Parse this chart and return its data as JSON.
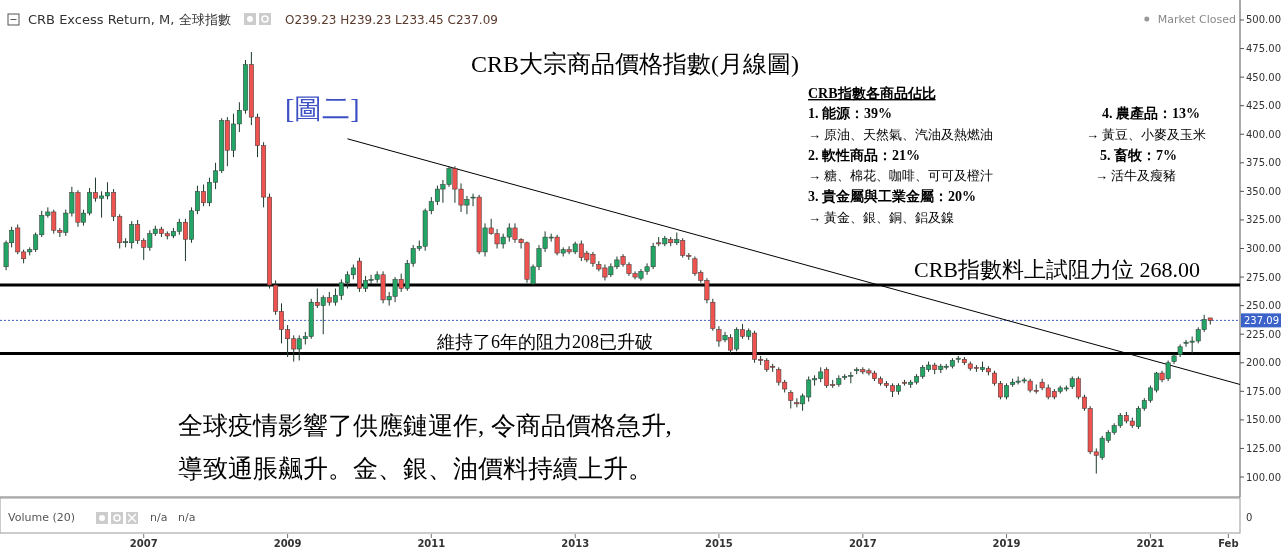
{
  "chart_data": {
    "type": "candlestick",
    "title": "CRB大宗商品價格指數(月線圖)",
    "subtitle": "CRB Excess Return, M, 全球指數",
    "x": [
      "2005-02",
      "2005-03",
      "2005-04",
      "2005-05",
      "2005-06",
      "2005-07",
      "2005-08",
      "2005-09",
      "2005-10",
      "2005-11",
      "2005-12",
      "2006-01",
      "2006-02",
      "2006-03",
      "2006-04",
      "2006-05",
      "2006-06",
      "2006-07",
      "2006-08",
      "2006-09",
      "2006-10",
      "2006-11",
      "2006-12",
      "2007-01",
      "2007-02",
      "2007-03",
      "2007-04",
      "2007-05",
      "2007-06",
      "2007-07",
      "2007-08",
      "2007-09",
      "2007-10",
      "2007-11",
      "2007-12",
      "2008-01",
      "2008-02",
      "2008-03",
      "2008-04",
      "2008-05",
      "2008-06",
      "2008-07",
      "2008-08",
      "2008-09",
      "2008-10",
      "2008-11",
      "2008-12",
      "2009-01",
      "2009-02",
      "2009-03",
      "2009-04",
      "2009-05",
      "2009-06",
      "2009-07",
      "2009-08",
      "2009-09",
      "2009-10",
      "2009-11",
      "2009-12",
      "2010-01",
      "2010-02",
      "2010-03",
      "2010-04",
      "2010-05",
      "2010-06",
      "2010-07",
      "2010-08",
      "2010-09",
      "2010-10",
      "2010-11",
      "2010-12",
      "2011-01",
      "2011-02",
      "2011-03",
      "2011-04",
      "2011-05",
      "2011-06",
      "2011-07",
      "2011-08",
      "2011-09",
      "2011-10",
      "2011-11",
      "2011-12",
      "2012-01",
      "2012-02",
      "2012-03",
      "2012-04",
      "2012-05",
      "2012-06",
      "2012-07",
      "2012-08",
      "2012-09",
      "2012-10",
      "2012-11",
      "2012-12",
      "2013-01",
      "2013-02",
      "2013-03",
      "2013-04",
      "2013-05",
      "2013-06",
      "2013-07",
      "2013-08",
      "2013-09",
      "2013-10",
      "2013-11",
      "2013-12",
      "2014-01",
      "2014-02",
      "2014-03",
      "2014-04",
      "2014-05",
      "2014-06",
      "2014-07",
      "2014-08",
      "2014-09",
      "2014-10",
      "2014-11",
      "2014-12",
      "2015-01",
      "2015-02",
      "2015-03",
      "2015-04",
      "2015-05",
      "2015-06",
      "2015-07",
      "2015-08",
      "2015-09",
      "2015-10",
      "2015-11",
      "2015-12",
      "2016-01",
      "2016-02",
      "2016-03",
      "2016-04",
      "2016-05",
      "2016-06",
      "2016-07",
      "2016-08",
      "2016-09",
      "2016-10",
      "2016-11",
      "2016-12",
      "2017-01",
      "2017-02",
      "2017-03",
      "2017-04",
      "2017-05",
      "2017-06",
      "2017-07",
      "2017-08",
      "2017-09",
      "2017-10",
      "2017-11",
      "2017-12",
      "2018-01",
      "2018-02",
      "2018-03",
      "2018-04",
      "2018-05",
      "2018-06",
      "2018-07",
      "2018-08",
      "2018-09",
      "2018-10",
      "2018-11",
      "2018-12",
      "2019-01",
      "2019-02",
      "2019-03",
      "2019-04",
      "2019-05",
      "2019-06",
      "2019-07",
      "2019-08",
      "2019-09",
      "2019-10",
      "2019-11",
      "2019-12",
      "2020-01",
      "2020-02",
      "2020-03",
      "2020-04",
      "2020-05",
      "2020-06",
      "2020-07",
      "2020-08",
      "2020-09",
      "2020-10",
      "2020-11",
      "2020-12",
      "2021-01",
      "2021-02",
      "2021-03",
      "2021-04",
      "2021-05",
      "2021-06",
      "2021-07",
      "2021-08",
      "2021-09",
      "2021-10",
      "2021-11"
    ],
    "ohlc": [
      [
        284,
        307,
        281,
        305
      ],
      [
        305,
        319,
        301,
        316
      ],
      [
        318,
        321,
        295,
        297
      ],
      [
        297,
        299,
        287,
        291
      ],
      [
        297,
        301,
        294,
        299
      ],
      [
        299,
        314,
        297,
        312
      ],
      [
        312,
        333,
        310,
        329
      ],
      [
        329,
        336,
        327,
        332
      ],
      [
        332,
        334,
        313,
        316
      ],
      [
        316,
        318,
        310,
        314
      ],
      [
        314,
        334,
        311,
        331
      ],
      [
        331,
        354,
        328,
        349
      ],
      [
        349,
        351,
        319,
        323
      ],
      [
        323,
        334,
        320,
        331
      ],
      [
        331,
        353,
        329,
        349
      ],
      [
        349,
        362,
        341,
        344
      ],
      [
        344,
        350,
        327,
        346
      ],
      [
        346,
        358,
        343,
        349
      ],
      [
        349,
        352,
        324,
        328
      ],
      [
        328,
        330,
        300,
        305
      ],
      [
        305,
        309,
        301,
        306
      ],
      [
        305,
        324,
        300,
        321
      ],
      [
        321,
        325,
        304,
        307
      ],
      [
        307,
        309,
        290,
        301
      ],
      [
        301,
        316,
        298,
        313
      ],
      [
        313,
        320,
        311,
        317
      ],
      [
        317,
        319,
        310,
        313
      ],
      [
        313,
        315,
        308,
        311
      ],
      [
        311,
        318,
        309,
        315
      ],
      [
        315,
        326,
        312,
        323
      ],
      [
        323,
        326,
        289,
        308
      ],
      [
        308,
        336,
        305,
        333
      ],
      [
        333,
        355,
        330,
        350
      ],
      [
        350,
        356,
        337,
        340
      ],
      [
        340,
        362,
        337,
        358
      ],
      [
        358,
        375,
        352,
        368
      ],
      [
        368,
        414,
        366,
        412
      ],
      [
        412,
        415,
        372,
        386
      ],
      [
        386,
        418,
        380,
        409
      ],
      [
        409,
        428,
        402,
        421
      ],
      [
        421,
        465,
        418,
        461
      ],
      [
        461,
        472,
        408,
        415
      ],
      [
        415,
        418,
        380,
        390
      ],
      [
        390,
        393,
        336,
        345
      ],
      [
        345,
        348,
        265,
        268
      ],
      [
        268,
        272,
        242,
        245
      ],
      [
        245,
        252,
        217,
        229
      ],
      [
        229,
        233,
        205,
        221
      ],
      [
        221,
        224,
        201,
        212
      ],
      [
        212,
        224,
        202,
        221
      ],
      [
        221,
        227,
        216,
        223
      ],
      [
        223,
        256,
        221,
        253
      ],
      [
        253,
        265,
        248,
        250
      ],
      [
        250,
        259,
        225,
        257
      ],
      [
        257,
        262,
        250,
        253
      ],
      [
        253,
        265,
        250,
        259
      ],
      [
        259,
        273,
        255,
        270
      ],
      [
        270,
        280,
        265,
        277
      ],
      [
        277,
        286,
        273,
        283
      ],
      [
        289,
        292,
        262,
        265
      ],
      [
        265,
        276,
        262,
        272
      ],
      [
        272,
        277,
        269,
        273
      ],
      [
        273,
        280,
        270,
        277
      ],
      [
        277,
        280,
        252,
        255
      ],
      [
        255,
        262,
        250,
        258
      ],
      [
        258,
        275,
        253,
        273
      ],
      [
        273,
        278,
        262,
        265
      ],
      [
        265,
        290,
        263,
        287
      ],
      [
        287,
        303,
        284,
        300
      ],
      [
        300,
        307,
        298,
        302
      ],
      [
        302,
        335,
        298,
        333
      ],
      [
        333,
        345,
        330,
        341
      ],
      [
        341,
        355,
        338,
        352
      ],
      [
        352,
        360,
        340,
        356
      ],
      [
        356,
        372,
        354,
        370
      ],
      [
        370,
        372,
        340,
        352
      ],
      [
        352,
        357,
        332,
        338
      ],
      [
        338,
        346,
        330,
        343
      ],
      [
        345,
        348,
        337,
        345
      ],
      [
        345,
        347,
        295,
        297
      ],
      [
        297,
        322,
        293,
        318
      ],
      [
        318,
        326,
        312,
        313
      ],
      [
        313,
        317,
        300,
        304
      ],
      [
        304,
        313,
        300,
        310
      ],
      [
        310,
        322,
        306,
        318
      ],
      [
        318,
        322,
        305,
        308
      ],
      [
        308,
        309,
        300,
        305
      ],
      [
        305,
        306,
        270,
        273
      ],
      [
        269,
        286,
        268,
        284
      ],
      [
        284,
        303,
        281,
        300
      ],
      [
        300,
        315,
        297,
        310
      ],
      [
        310,
        313,
        306,
        310
      ],
      [
        310,
        312,
        294,
        296
      ],
      [
        296,
        301,
        293,
        299
      ],
      [
        299,
        302,
        295,
        297
      ],
      [
        297,
        306,
        295,
        304
      ],
      [
        304,
        307,
        289,
        292
      ],
      [
        296,
        298,
        288,
        290
      ],
      [
        295,
        297,
        284,
        287
      ],
      [
        286,
        289,
        280,
        282
      ],
      [
        283,
        286,
        272,
        275
      ],
      [
        277,
        287,
        275,
        284
      ],
      [
        284,
        293,
        282,
        290
      ],
      [
        293,
        295,
        284,
        286
      ],
      [
        286,
        288,
        276,
        278
      ],
      [
        278,
        280,
        273,
        275
      ],
      [
        274,
        282,
        272,
        280
      ],
      [
        280,
        287,
        277,
        284
      ],
      [
        284,
        305,
        282,
        302
      ],
      [
        305,
        310,
        302,
        304
      ],
      [
        304,
        311,
        302,
        309
      ],
      [
        308,
        310,
        302,
        305
      ],
      [
        305,
        314,
        303,
        308
      ],
      [
        307,
        309,
        292,
        294
      ],
      [
        294,
        296,
        290,
        293
      ],
      [
        291,
        293,
        276,
        278
      ],
      [
        279,
        281,
        270,
        272
      ],
      [
        272,
        274,
        252,
        255
      ],
      [
        253,
        256,
        228,
        230
      ],
      [
        229,
        232,
        214,
        219
      ],
      [
        220,
        227,
        218,
        224
      ],
      [
        222,
        225,
        208,
        211
      ],
      [
        212,
        231,
        210,
        229
      ],
      [
        229,
        234,
        221,
        223
      ],
      [
        223,
        230,
        220,
        228
      ],
      [
        226,
        228,
        200,
        203
      ],
      [
        203,
        206,
        198,
        202
      ],
      [
        202,
        204,
        192,
        194
      ],
      [
        197,
        199,
        192,
        196
      ],
      [
        194,
        196,
        180,
        183
      ],
      [
        183,
        185,
        174,
        177
      ],
      [
        174,
        176,
        160,
        167
      ],
      [
        165,
        169,
        161,
        164
      ],
      [
        164,
        173,
        158,
        171
      ],
      [
        170,
        188,
        166,
        185
      ],
      [
        185,
        189,
        180,
        186
      ],
      [
        186,
        196,
        183,
        192
      ],
      [
        194,
        196,
        178,
        180
      ],
      [
        181,
        185,
        178,
        180
      ],
      [
        181,
        189,
        179,
        186
      ],
      [
        187,
        190,
        185,
        188
      ],
      [
        188,
        192,
        182,
        189
      ],
      [
        193,
        196,
        190,
        194
      ],
      [
        194,
        196,
        190,
        192
      ],
      [
        193,
        195,
        189,
        191
      ],
      [
        191,
        193,
        184,
        186
      ],
      [
        186,
        188,
        180,
        182
      ],
      [
        182,
        184,
        178,
        180
      ],
      [
        180,
        182,
        170,
        175
      ],
      [
        175,
        182,
        172,
        180
      ],
      [
        183,
        185,
        180,
        182
      ],
      [
        181,
        185,
        178,
        183
      ],
      [
        183,
        190,
        181,
        188
      ],
      [
        188,
        198,
        186,
        196
      ],
      [
        194,
        201,
        192,
        198
      ],
      [
        198,
        200,
        190,
        194
      ],
      [
        194,
        199,
        191,
        197
      ],
      [
        196,
        199,
        194,
        197
      ],
      [
        197,
        204,
        195,
        202
      ],
      [
        203,
        206,
        200,
        204
      ],
      [
        203,
        205,
        198,
        200
      ],
      [
        199,
        201,
        193,
        195
      ],
      [
        196,
        198,
        192,
        195
      ],
      [
        194,
        201,
        192,
        196
      ],
      [
        195,
        197,
        189,
        192
      ],
      [
        191,
        193,
        180,
        182
      ],
      [
        182,
        184,
        168,
        170
      ],
      [
        170,
        182,
        168,
        180
      ],
      [
        181,
        186,
        179,
        183
      ],
      [
        183,
        188,
        181,
        184
      ],
      [
        184,
        187,
        182,
        185
      ],
      [
        184,
        186,
        174,
        176
      ],
      [
        176,
        181,
        173,
        175
      ],
      [
        183,
        186,
        176,
        178
      ],
      [
        178,
        181,
        168,
        170
      ],
      [
        175,
        177,
        168,
        170
      ],
      [
        175,
        180,
        173,
        178
      ],
      [
        177,
        180,
        175,
        178
      ],
      [
        179,
        188,
        177,
        186
      ],
      [
        186,
        188,
        168,
        170
      ],
      [
        170,
        172,
        158,
        160
      ],
      [
        160,
        162,
        120,
        122
      ],
      [
        122,
        125,
        103,
        119
      ],
      [
        117,
        136,
        115,
        134
      ],
      [
        132,
        141,
        130,
        139
      ],
      [
        139,
        147,
        137,
        145
      ],
      [
        145,
        156,
        143,
        154
      ],
      [
        154,
        157,
        147,
        149
      ],
      [
        149,
        152,
        143,
        145
      ],
      [
        144,
        162,
        142,
        160
      ],
      [
        160,
        169,
        158,
        167
      ],
      [
        167,
        180,
        165,
        178
      ],
      [
        176,
        192,
        174,
        191
      ],
      [
        191,
        193,
        183,
        185
      ],
      [
        186,
        202,
        184,
        200
      ],
      [
        201,
        208,
        199,
        206
      ],
      [
        207,
        216,
        205,
        214
      ],
      [
        217,
        220,
        214,
        218
      ],
      [
        218,
        223,
        208,
        219
      ],
      [
        219,
        231,
        217,
        229
      ],
      [
        229,
        242,
        227,
        238
      ],
      [
        239.23,
        239.23,
        233.45,
        237.09
      ]
    ],
    "colors": [
      "#22a565",
      "#22a565",
      "#ef5350",
      "#ef5350",
      "#22a565",
      "#22a565",
      "#22a565",
      "#22a565",
      "#ef5350",
      "#ef5350",
      "#22a565",
      "#22a565",
      "#ef5350",
      "#22a565",
      "#22a565",
      "#ef5350",
      "#22a565",
      "#22a565",
      "#ef5350",
      "#ef5350",
      "#22a565",
      "#22a565",
      "#ef5350",
      "#ef5350",
      "#22a565",
      "#22a565",
      "#ef5350",
      "#ef5350",
      "#22a565",
      "#22a565",
      "#ef5350",
      "#22a565",
      "#22a565",
      "#ef5350",
      "#22a565",
      "#22a565",
      "#22a565",
      "#ef5350",
      "#22a565",
      "#22a565",
      "#22a565",
      "#ef5350",
      "#ef5350",
      "#ef5350",
      "#ef5350",
      "#ef5350",
      "#ef5350",
      "#ef5350",
      "#ef5350",
      "#22a565",
      "#22a565",
      "#22a565",
      "#ef5350",
      "#22a565",
      "#ef5350",
      "#22a565",
      "#22a565",
      "#22a565",
      "#22a565",
      "#ef5350",
      "#22a565",
      "#22a565",
      "#22a565",
      "#ef5350",
      "#22a565",
      "#22a565",
      "#ef5350",
      "#22a565",
      "#22a565",
      "#22a565",
      "#22a565",
      "#22a565",
      "#22a565",
      "#22a565",
      "#22a565",
      "#ef5350",
      "#ef5350",
      "#22a565",
      "#22a565",
      "#ef5350",
      "#22a565",
      "#ef5350",
      "#ef5350",
      "#22a565",
      "#22a565",
      "#ef5350",
      "#ef5350",
      "#ef5350",
      "#22a565",
      "#22a565",
      "#22a565",
      "#22a565",
      "#ef5350",
      "#22a565",
      "#ef5350",
      "#22a565",
      "#ef5350",
      "#ef5350",
      "#ef5350",
      "#ef5350",
      "#ef5350",
      "#22a565",
      "#22a565",
      "#ef5350",
      "#ef5350",
      "#ef5350",
      "#22a565",
      "#22a565",
      "#22a565",
      "#ef5350",
      "#22a565",
      "#ef5350",
      "#22a565",
      "#ef5350",
      "#ef5350",
      "#ef5350",
      "#ef5350",
      "#ef5350",
      "#ef5350",
      "#ef5350",
      "#22a565",
      "#ef5350",
      "#22a565",
      "#ef5350",
      "#22a565",
      "#ef5350",
      "#ef5350",
      "#ef5350",
      "#ef5350",
      "#ef5350",
      "#ef5350",
      "#ef5350",
      "#ef5350",
      "#22a565",
      "#22a565",
      "#22a565",
      "#22a565",
      "#ef5350",
      "#ef5350",
      "#22a565",
      "#22a565",
      "#22a565",
      "#22a565",
      "#ef5350",
      "#ef5350",
      "#ef5350",
      "#ef5350",
      "#ef5350",
      "#ef5350",
      "#22a565",
      "#ef5350",
      "#22a565",
      "#22a565",
      "#22a565",
      "#22a565",
      "#ef5350",
      "#22a565",
      "#22a565",
      "#22a565",
      "#22a565",
      "#ef5350",
      "#ef5350",
      "#ef5350",
      "#22a565",
      "#ef5350",
      "#ef5350",
      "#ef5350",
      "#22a565",
      "#22a565",
      "#22a565",
      "#22a565",
      "#ef5350",
      "#ef5350",
      "#ef5350",
      "#ef5350",
      "#ef5350",
      "#22a565",
      "#22a565",
      "#22a565",
      "#ef5350",
      "#ef5350",
      "#ef5350",
      "#ef5350",
      "#22a565",
      "#22a565",
      "#22a565",
      "#22a565",
      "#ef5350",
      "#ef5350",
      "#22a565",
      "#22a565",
      "#22a565",
      "#22a565",
      "#ef5350",
      "#22a565",
      "#22a565",
      "#22a565",
      "#22a565",
      "#22a565",
      "#22a565",
      "#22a565",
      "#ef5350"
    ],
    "series": [
      {
        "type": "line",
        "x": [
          "2009-11",
          "2022-04"
        ],
        "values": [
          396,
          181
        ],
        "color": "#000000"
      }
    ],
    "xlim": [
      "2005-01",
      "2022-04"
    ],
    "ylim": [
      82.5,
      517.5
    ],
    "xticks": [
      {
        "value": "2007-01",
        "label": "2007"
      },
      {
        "value": "2009-01",
        "label": "2009"
      },
      {
        "value": "2011-01",
        "label": "2011"
      },
      {
        "value": "2013-01",
        "label": "2013"
      },
      {
        "value": "2015-01",
        "label": "2015"
      },
      {
        "value": "2017-01",
        "label": "2017"
      },
      {
        "value": "2019-01",
        "label": "2019"
      },
      {
        "value": "2021-01",
        "label": "2021"
      },
      {
        "value": "2022-02",
        "label": "Feb"
      }
    ],
    "yticks": [
      {
        "value": 100,
        "label": "100.00"
      },
      {
        "value": 125,
        "label": "125.00"
      },
      {
        "value": 150,
        "label": "150.00"
      },
      {
        "value": 175,
        "label": "175.00"
      },
      {
        "value": 200,
        "label": "200.00"
      },
      {
        "value": 225,
        "label": "225.00"
      },
      {
        "value": 250,
        "label": "250.00"
      },
      {
        "value": 275,
        "label": "275.00"
      },
      {
        "value": 300,
        "label": "300.00"
      },
      {
        "value": 325,
        "label": "325.00"
      },
      {
        "value": 350,
        "label": "350.00"
      },
      {
        "value": 375,
        "label": "375.00"
      },
      {
        "value": 400,
        "label": "400.00"
      },
      {
        "value": 425,
        "label": "425.00"
      },
      {
        "value": 450,
        "label": "450.00"
      },
      {
        "value": 475,
        "label": "475.00"
      },
      {
        "value": 500,
        "label": "500.00"
      }
    ],
    "ref_lines": [
      {
        "axis": "y",
        "value": 268,
        "label": "CRB指數料上試阻力位 268.00",
        "color": "#000000",
        "line_style": "solid"
      },
      {
        "axis": "y",
        "value": 208,
        "label": "維持了6年的阻力208已升破",
        "color": "#000000",
        "line_style": "solid"
      },
      {
        "axis": "y",
        "value": 237.09,
        "label": "237.09",
        "color": "#3a62c9",
        "line_style": "dotted"
      }
    ],
    "annotations": [
      "O239.23 H239.23 L233.45 C237.09",
      "Market Closed",
      "[圖二]",
      "CRB指數各商品佔比",
      "1. 能源：39%",
      "→ 原油、天然氣、汽油及熱燃油",
      "2. 軟性商品：21%",
      "→ 糖、棉花、咖啡、可可及橙汁",
      "3. 貴金屬與工業金屬：20%",
      "→ 黃金、銀、銅、鋁及鎳",
      "4. 農產品：13%",
      "→ 黃豆、小麥及玉米",
      "5. 畜牧：7%",
      "→ 活牛及瘦豬",
      "全球疫情影響了供應鏈運作, 令商品價格急升,",
      "導致通脹飆升。金、銀、油價料持續上升。",
      "Volume (20)",
      "n/a",
      "n/a",
      "0"
    ]
  }
}
